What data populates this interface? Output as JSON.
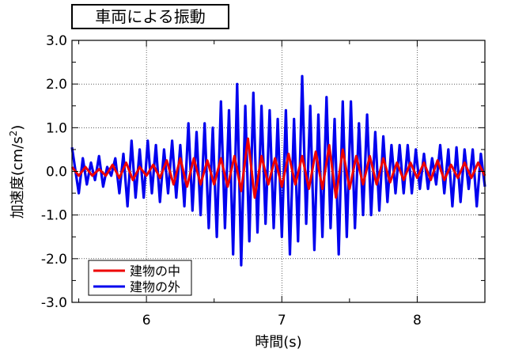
{
  "chart_data": {
    "type": "line",
    "title": "車両による振動",
    "xlabel": "時間(s)",
    "ylabel_main": "加速度(cm/s",
    "ylabel_sup": "2",
    "ylabel_close": ")",
    "xlim": [
      5.45,
      8.5
    ],
    "ylim": [
      -3.0,
      3.0
    ],
    "x_ticks": [
      6,
      7,
      8
    ],
    "x_tick_labels": [
      "6",
      "7",
      "8"
    ],
    "y_ticks": [
      -3,
      -2,
      -1,
      0,
      1,
      2,
      3
    ],
    "y_tick_labels": [
      "-3.0",
      "-2.0",
      "-1.0",
      "0.0",
      "1.0",
      "2.0",
      "3.0"
    ],
    "grid": true,
    "legend_position": "bottom-left",
    "series": [
      {
        "name": "建物の外",
        "color": "#0000ee",
        "x": [
          5.45,
          5.5,
          5.53,
          5.56,
          5.59,
          5.62,
          5.65,
          5.68,
          5.71,
          5.74,
          5.77,
          5.8,
          5.83,
          5.86,
          5.89,
          5.92,
          5.95,
          5.98,
          6.01,
          6.04,
          6.07,
          6.1,
          6.13,
          6.16,
          6.19,
          6.22,
          6.25,
          6.28,
          6.31,
          6.34,
          6.37,
          6.4,
          6.43,
          6.46,
          6.49,
          6.52,
          6.55,
          6.58,
          6.61,
          6.64,
          6.67,
          6.7,
          6.73,
          6.76,
          6.79,
          6.82,
          6.85,
          6.88,
          6.91,
          6.94,
          6.97,
          7.0,
          7.03,
          7.06,
          7.09,
          7.12,
          7.15,
          7.18,
          7.21,
          7.24,
          7.27,
          7.3,
          7.33,
          7.36,
          7.39,
          7.42,
          7.45,
          7.48,
          7.51,
          7.54,
          7.57,
          7.6,
          7.63,
          7.66,
          7.69,
          7.72,
          7.75,
          7.78,
          7.81,
          7.84,
          7.87,
          7.9,
          7.93,
          7.96,
          7.99,
          8.02,
          8.05,
          8.08,
          8.11,
          8.14,
          8.17,
          8.2,
          8.23,
          8.26,
          8.29,
          8.32,
          8.35,
          8.38,
          8.41,
          8.44,
          8.47,
          8.5
        ],
        "values": [
          0.55,
          -0.5,
          0.3,
          -0.3,
          0.2,
          -0.2,
          0.35,
          -0.35,
          0.1,
          -0.1,
          0.3,
          -0.5,
          0.4,
          -0.8,
          0.7,
          -0.6,
          0.5,
          -0.6,
          0.7,
          -0.5,
          0.6,
          -0.7,
          0.5,
          -0.5,
          0.7,
          -0.6,
          0.6,
          -0.8,
          1.1,
          -0.9,
          0.9,
          -1.0,
          1.1,
          -1.3,
          1.0,
          -1.5,
          1.6,
          -1.3,
          1.4,
          -1.9,
          2.0,
          -2.15,
          1.5,
          -1.6,
          1.8,
          -1.4,
          1.5,
          -1.2,
          1.4,
          -1.3,
          1.2,
          -1.5,
          1.4,
          -1.9,
          1.2,
          -1.6,
          2.18,
          -1.2,
          1.5,
          -1.8,
          1.3,
          -1.5,
          1.7,
          -1.3,
          1.2,
          -1.9,
          1.6,
          -1.5,
          1.6,
          -1.3,
          1.1,
          -1.0,
          1.3,
          -1.0,
          0.9,
          -0.9,
          0.8,
          -0.7,
          0.6,
          -0.5,
          0.6,
          -0.5,
          0.6,
          -0.5,
          0.5,
          -0.4,
          0.4,
          -0.4,
          0.3,
          -0.3,
          0.6,
          -0.5,
          0.5,
          -0.8,
          0.55,
          -0.7,
          0.5,
          -0.4,
          0.5,
          -0.8,
          0.4,
          -0.35
        ]
      },
      {
        "name": "建物の中",
        "color": "#ee0000",
        "x": [
          5.45,
          5.5,
          5.55,
          5.6,
          5.65,
          5.7,
          5.75,
          5.8,
          5.85,
          5.9,
          5.95,
          6.0,
          6.05,
          6.1,
          6.15,
          6.2,
          6.25,
          6.3,
          6.35,
          6.4,
          6.45,
          6.5,
          6.55,
          6.6,
          6.65,
          6.7,
          6.75,
          6.8,
          6.85,
          6.9,
          6.95,
          7.0,
          7.05,
          7.1,
          7.15,
          7.2,
          7.25,
          7.3,
          7.35,
          7.4,
          7.45,
          7.5,
          7.55,
          7.6,
          7.65,
          7.7,
          7.75,
          7.8,
          7.85,
          7.9,
          7.95,
          8.0,
          8.05,
          8.1,
          8.15,
          8.2,
          8.25,
          8.3,
          8.35,
          8.4,
          8.45,
          8.5
        ],
        "values": [
          0.1,
          -0.1,
          0.1,
          -0.1,
          0.05,
          -0.1,
          0.15,
          -0.15,
          0.2,
          -0.2,
          0.1,
          -0.1,
          0.15,
          -0.15,
          0.25,
          -0.3,
          0.3,
          -0.35,
          0.3,
          -0.3,
          0.25,
          -0.3,
          0.3,
          -0.35,
          0.35,
          -0.45,
          0.75,
          -0.6,
          0.35,
          -0.3,
          0.3,
          -0.35,
          0.4,
          -0.3,
          0.35,
          -0.4,
          0.45,
          -0.4,
          0.6,
          -0.6,
          0.5,
          -0.4,
          0.35,
          -0.3,
          0.35,
          -0.3,
          0.3,
          -0.25,
          0.2,
          -0.2,
          0.2,
          -0.15,
          0.2,
          -0.2,
          0.25,
          -0.2,
          0.15,
          -0.15,
          0.2,
          -0.15,
          0.2,
          -0.1
        ]
      }
    ]
  }
}
